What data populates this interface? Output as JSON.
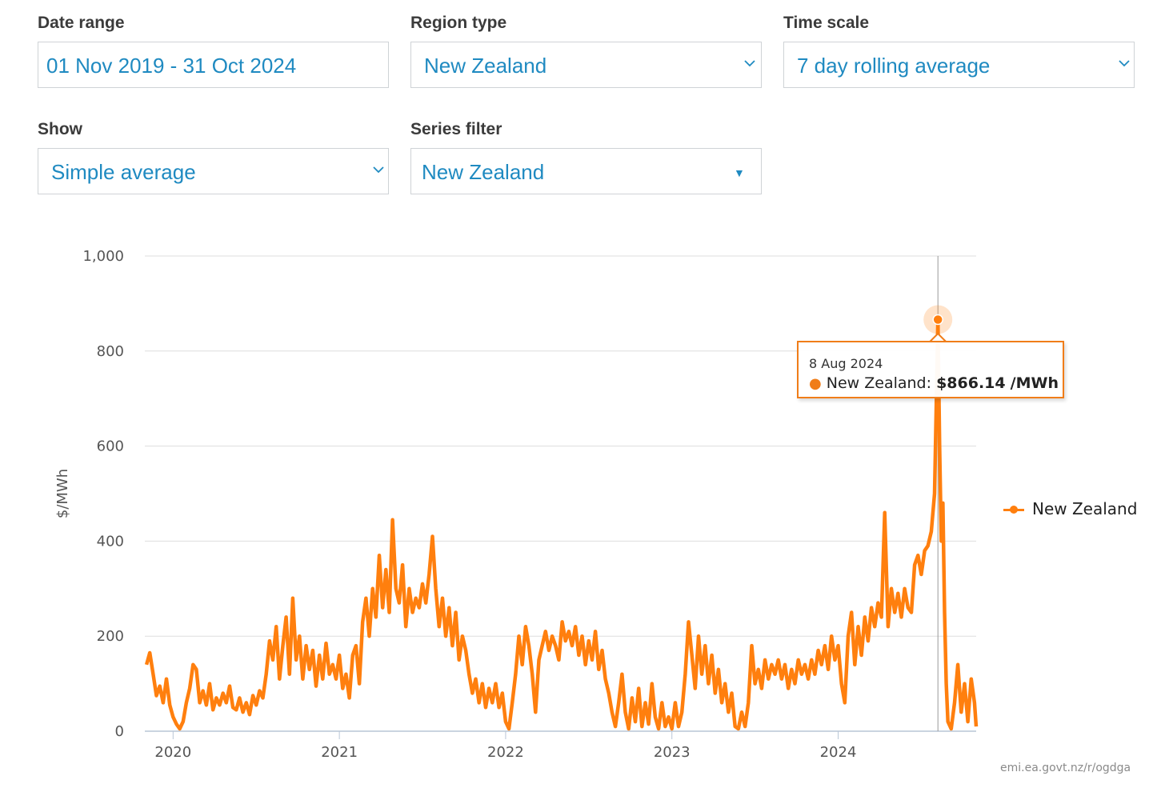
{
  "controls": {
    "date_range": {
      "label": "Date range",
      "value": "01 Nov 2019 - 31 Oct 2024"
    },
    "region_type": {
      "label": "Region type",
      "value": "New Zealand"
    },
    "time_scale": {
      "label": "Time scale",
      "value": "7 day rolling average"
    },
    "show": {
      "label": "Show",
      "value": "Simple average"
    },
    "series_filter": {
      "label": "Series filter",
      "value": "New Zealand"
    }
  },
  "tooltip": {
    "date": "8 Aug 2024",
    "series": "New Zealand:",
    "value": "$866.14",
    "unit": "/MWh"
  },
  "legend": {
    "label": "New Zealand"
  },
  "credit": "emi.ea.govt.nz/r/ogdga",
  "colors": {
    "series": "#ff7f0e",
    "accent": "#1f8ac1",
    "tooltip_border": "#f07d19"
  },
  "chart_data": {
    "type": "line",
    "title": "",
    "xlabel": "",
    "ylabel": "$/MWh",
    "xlim": [
      2019.83,
      2024.83
    ],
    "ylim": [
      0,
      1000
    ],
    "y_ticks": [
      0,
      200,
      400,
      600,
      800,
      1000
    ],
    "y_tick_labels": [
      "0",
      "200",
      "400",
      "600",
      "800",
      "1,000"
    ],
    "x_ticks": [
      2020,
      2021,
      2022,
      2023,
      2024
    ],
    "x_tick_labels": [
      "2020",
      "2021",
      "2022",
      "2023",
      "2024"
    ],
    "grid": true,
    "legend_position": "right",
    "highlight": {
      "x": 2024.6,
      "y": 866.14,
      "label": "8 Aug 2024"
    },
    "series": [
      {
        "name": "New Zealand",
        "points": [
          [
            2019.84,
            140
          ],
          [
            2019.86,
            165
          ],
          [
            2019.88,
            120
          ],
          [
            2019.9,
            75
          ],
          [
            2019.92,
            95
          ],
          [
            2019.94,
            60
          ],
          [
            2019.96,
            110
          ],
          [
            2019.98,
            55
          ],
          [
            2020.0,
            30
          ],
          [
            2020.02,
            15
          ],
          [
            2020.04,
            5
          ],
          [
            2020.06,
            20
          ],
          [
            2020.08,
            60
          ],
          [
            2020.1,
            90
          ],
          [
            2020.12,
            140
          ],
          [
            2020.14,
            130
          ],
          [
            2020.16,
            60
          ],
          [
            2020.18,
            85
          ],
          [
            2020.2,
            55
          ],
          [
            2020.22,
            100
          ],
          [
            2020.24,
            45
          ],
          [
            2020.26,
            70
          ],
          [
            2020.28,
            55
          ],
          [
            2020.3,
            80
          ],
          [
            2020.32,
            60
          ],
          [
            2020.34,
            95
          ],
          [
            2020.36,
            50
          ],
          [
            2020.38,
            45
          ],
          [
            2020.4,
            70
          ],
          [
            2020.42,
            40
          ],
          [
            2020.44,
            60
          ],
          [
            2020.46,
            35
          ],
          [
            2020.48,
            75
          ],
          [
            2020.5,
            55
          ],
          [
            2020.52,
            85
          ],
          [
            2020.54,
            70
          ],
          [
            2020.56,
            120
          ],
          [
            2020.58,
            190
          ],
          [
            2020.6,
            150
          ],
          [
            2020.62,
            220
          ],
          [
            2020.64,
            110
          ],
          [
            2020.66,
            180
          ],
          [
            2020.68,
            240
          ],
          [
            2020.7,
            120
          ],
          [
            2020.72,
            280
          ],
          [
            2020.74,
            150
          ],
          [
            2020.76,
            200
          ],
          [
            2020.78,
            110
          ],
          [
            2020.8,
            180
          ],
          [
            2020.82,
            130
          ],
          [
            2020.84,
            170
          ],
          [
            2020.86,
            95
          ],
          [
            2020.88,
            160
          ],
          [
            2020.9,
            110
          ],
          [
            2020.92,
            185
          ],
          [
            2020.94,
            120
          ],
          [
            2020.96,
            140
          ],
          [
            2020.98,
            110
          ],
          [
            2021.0,
            160
          ],
          [
            2021.02,
            90
          ],
          [
            2021.04,
            120
          ],
          [
            2021.06,
            70
          ],
          [
            2021.08,
            160
          ],
          [
            2021.1,
            180
          ],
          [
            2021.12,
            100
          ],
          [
            2021.14,
            230
          ],
          [
            2021.16,
            280
          ],
          [
            2021.18,
            200
          ],
          [
            2021.2,
            300
          ],
          [
            2021.22,
            240
          ],
          [
            2021.24,
            370
          ],
          [
            2021.26,
            260
          ],
          [
            2021.28,
            340
          ],
          [
            2021.3,
            250
          ],
          [
            2021.32,
            445
          ],
          [
            2021.34,
            300
          ],
          [
            2021.36,
            270
          ],
          [
            2021.38,
            350
          ],
          [
            2021.4,
            220
          ],
          [
            2021.42,
            300
          ],
          [
            2021.44,
            250
          ],
          [
            2021.46,
            280
          ],
          [
            2021.48,
            260
          ],
          [
            2021.5,
            310
          ],
          [
            2021.52,
            270
          ],
          [
            2021.54,
            330
          ],
          [
            2021.56,
            410
          ],
          [
            2021.58,
            300
          ],
          [
            2021.6,
            220
          ],
          [
            2021.62,
            280
          ],
          [
            2021.64,
            200
          ],
          [
            2021.66,
            260
          ],
          [
            2021.68,
            180
          ],
          [
            2021.7,
            250
          ],
          [
            2021.72,
            150
          ],
          [
            2021.74,
            200
          ],
          [
            2021.76,
            170
          ],
          [
            2021.78,
            120
          ],
          [
            2021.8,
            80
          ],
          [
            2021.82,
            110
          ],
          [
            2021.84,
            60
          ],
          [
            2021.86,
            100
          ],
          [
            2021.88,
            50
          ],
          [
            2021.9,
            90
          ],
          [
            2021.92,
            60
          ],
          [
            2021.94,
            100
          ],
          [
            2021.96,
            50
          ],
          [
            2021.98,
            80
          ],
          [
            2022.0,
            20
          ],
          [
            2022.02,
            5
          ],
          [
            2022.04,
            60
          ],
          [
            2022.06,
            120
          ],
          [
            2022.08,
            200
          ],
          [
            2022.1,
            140
          ],
          [
            2022.12,
            220
          ],
          [
            2022.14,
            180
          ],
          [
            2022.16,
            120
          ],
          [
            2022.18,
            40
          ],
          [
            2022.2,
            150
          ],
          [
            2022.22,
            180
          ],
          [
            2022.24,
            210
          ],
          [
            2022.26,
            170
          ],
          [
            2022.28,
            200
          ],
          [
            2022.3,
            180
          ],
          [
            2022.32,
            150
          ],
          [
            2022.34,
            230
          ],
          [
            2022.36,
            190
          ],
          [
            2022.38,
            210
          ],
          [
            2022.4,
            180
          ],
          [
            2022.42,
            220
          ],
          [
            2022.44,
            160
          ],
          [
            2022.46,
            200
          ],
          [
            2022.48,
            140
          ],
          [
            2022.5,
            190
          ],
          [
            2022.52,
            150
          ],
          [
            2022.54,
            210
          ],
          [
            2022.56,
            130
          ],
          [
            2022.58,
            170
          ],
          [
            2022.6,
            110
          ],
          [
            2022.62,
            80
          ],
          [
            2022.64,
            40
          ],
          [
            2022.66,
            10
          ],
          [
            2022.68,
            60
          ],
          [
            2022.7,
            120
          ],
          [
            2022.72,
            40
          ],
          [
            2022.74,
            5
          ],
          [
            2022.76,
            70
          ],
          [
            2022.78,
            20
          ],
          [
            2022.8,
            90
          ],
          [
            2022.82,
            10
          ],
          [
            2022.84,
            60
          ],
          [
            2022.86,
            15
          ],
          [
            2022.88,
            100
          ],
          [
            2022.9,
            30
          ],
          [
            2022.92,
            5
          ],
          [
            2022.94,
            60
          ],
          [
            2022.96,
            10
          ],
          [
            2022.98,
            30
          ],
          [
            2023.0,
            5
          ],
          [
            2023.02,
            60
          ],
          [
            2023.04,
            10
          ],
          [
            2023.06,
            40
          ],
          [
            2023.08,
            120
          ],
          [
            2023.1,
            230
          ],
          [
            2023.12,
            160
          ],
          [
            2023.14,
            90
          ],
          [
            2023.16,
            200
          ],
          [
            2023.18,
            120
          ],
          [
            2023.2,
            180
          ],
          [
            2023.22,
            100
          ],
          [
            2023.24,
            160
          ],
          [
            2023.26,
            80
          ],
          [
            2023.28,
            130
          ],
          [
            2023.3,
            60
          ],
          [
            2023.32,
            100
          ],
          [
            2023.34,
            40
          ],
          [
            2023.36,
            80
          ],
          [
            2023.38,
            10
          ],
          [
            2023.4,
            5
          ],
          [
            2023.42,
            40
          ],
          [
            2023.44,
            10
          ],
          [
            2023.46,
            60
          ],
          [
            2023.48,
            180
          ],
          [
            2023.5,
            100
          ],
          [
            2023.52,
            130
          ],
          [
            2023.54,
            90
          ],
          [
            2023.56,
            150
          ],
          [
            2023.58,
            110
          ],
          [
            2023.6,
            140
          ],
          [
            2023.62,
            120
          ],
          [
            2023.64,
            150
          ],
          [
            2023.66,
            110
          ],
          [
            2023.68,
            140
          ],
          [
            2023.7,
            90
          ],
          [
            2023.72,
            130
          ],
          [
            2023.74,
            100
          ],
          [
            2023.76,
            150
          ],
          [
            2023.78,
            120
          ],
          [
            2023.8,
            140
          ],
          [
            2023.82,
            110
          ],
          [
            2023.84,
            150
          ],
          [
            2023.86,
            120
          ],
          [
            2023.88,
            170
          ],
          [
            2023.9,
            140
          ],
          [
            2023.92,
            180
          ],
          [
            2023.94,
            130
          ],
          [
            2023.96,
            200
          ],
          [
            2023.98,
            150
          ],
          [
            2024.0,
            180
          ],
          [
            2024.02,
            100
          ],
          [
            2024.04,
            60
          ],
          [
            2024.06,
            200
          ],
          [
            2024.08,
            250
          ],
          [
            2024.1,
            140
          ],
          [
            2024.12,
            220
          ],
          [
            2024.14,
            160
          ],
          [
            2024.16,
            240
          ],
          [
            2024.18,
            190
          ],
          [
            2024.2,
            260
          ],
          [
            2024.22,
            220
          ],
          [
            2024.24,
            270
          ],
          [
            2024.26,
            240
          ],
          [
            2024.28,
            460
          ],
          [
            2024.3,
            220
          ],
          [
            2024.32,
            300
          ],
          [
            2024.34,
            250
          ],
          [
            2024.36,
            290
          ],
          [
            2024.38,
            240
          ],
          [
            2024.4,
            300
          ],
          [
            2024.42,
            260
          ],
          [
            2024.44,
            250
          ],
          [
            2024.46,
            350
          ],
          [
            2024.48,
            370
          ],
          [
            2024.5,
            330
          ],
          [
            2024.52,
            380
          ],
          [
            2024.54,
            390
          ],
          [
            2024.56,
            420
          ],
          [
            2024.58,
            500
          ],
          [
            2024.6,
            866.14
          ],
          [
            2024.61,
            600
          ],
          [
            2024.62,
            400
          ],
          [
            2024.63,
            480
          ],
          [
            2024.64,
            250
          ],
          [
            2024.65,
            100
          ],
          [
            2024.66,
            20
          ],
          [
            2024.68,
            5
          ],
          [
            2024.7,
            60
          ],
          [
            2024.72,
            140
          ],
          [
            2024.74,
            40
          ],
          [
            2024.76,
            100
          ],
          [
            2024.78,
            20
          ],
          [
            2024.8,
            110
          ],
          [
            2024.82,
            60
          ],
          [
            2024.83,
            10
          ]
        ]
      }
    ]
  }
}
